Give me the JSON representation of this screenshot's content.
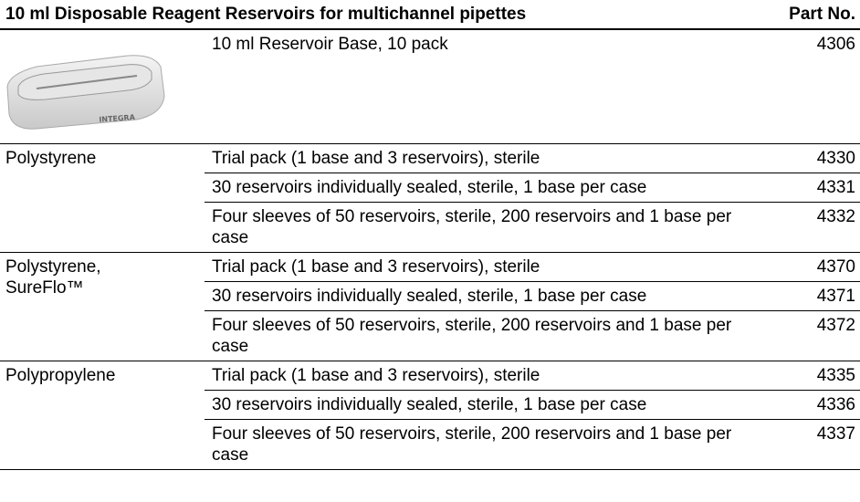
{
  "table": {
    "header": [
      "10 ml Disposable Reagent Reservoirs for multichannel pipettes",
      "Part No."
    ],
    "base_row": {
      "image_label": "INTEGRA",
      "description": "10 ml Reservoir Base, 10 pack",
      "part": 4306
    },
    "groups": [
      {
        "material": "Polystyrene",
        "rows": [
          {
            "description": "Trial pack (1 base and 3 reservoirs), sterile",
            "part": 4330
          },
          {
            "description": "30 reservoirs individually sealed, sterile, 1 base per case",
            "part": 4331
          },
          {
            "description": "Four sleeves of 50 reservoirs, sterile, 200 reservoirs and 1 base per case",
            "part": 4332
          }
        ]
      },
      {
        "material": "Polystyrene, SureFlo™",
        "rows": [
          {
            "description": "Trial pack (1 base and 3 reservoirs), sterile",
            "part": 4370
          },
          {
            "description": "30 reservoirs individually sealed, sterile, 1 base per case",
            "part": 4371
          },
          {
            "description": "Four sleeves of 50 reservoirs, sterile, 200 reservoirs and 1 base per case",
            "part": 4372
          }
        ]
      },
      {
        "material": "Polypropylene",
        "rows": [
          {
            "description": "Trial pack (1 base and 3 reservoirs), sterile",
            "part": 4335
          },
          {
            "description": "30 reservoirs individually sealed, sterile, 1 base per case",
            "part": 4336
          },
          {
            "description": "Four sleeves of 50 reservoirs, sterile, 200 reservoirs and 1 base per case",
            "part": 4337
          }
        ]
      }
    ]
  }
}
